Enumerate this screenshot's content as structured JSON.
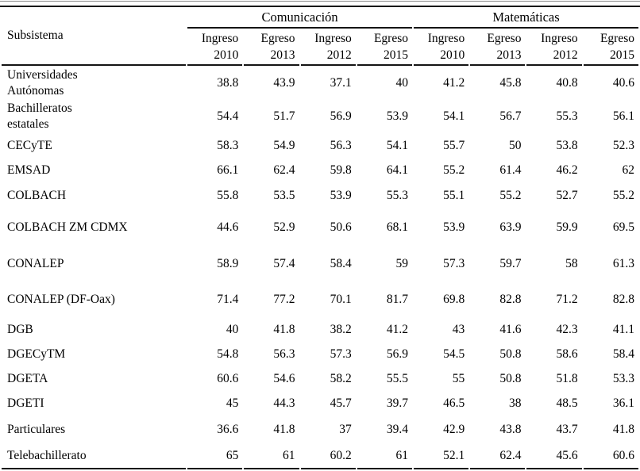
{
  "table": {
    "row_header_label": "Subsistema",
    "groups": [
      {
        "label": "Comunicación"
      },
      {
        "label": "Matemáticas"
      }
    ],
    "subheaders": [
      "Ingreso\n2010",
      "Egreso\n2013",
      "Ingreso\n2012",
      "Egreso\n2015",
      "Ingreso\n2010",
      "Egreso\n2013",
      "Ingreso\n2012",
      "Egreso\n2015"
    ],
    "rows": [
      {
        "label": "Universidades\nAutónomas",
        "values": [
          "38.8",
          "43.9",
          "37.1",
          "40",
          "41.2",
          "45.8",
          "40.8",
          "40.6"
        ]
      },
      {
        "label": "Bachilleratos\nestatales",
        "values": [
          "54.4",
          "51.7",
          "56.9",
          "53.9",
          "54.1",
          "56.7",
          "55.3",
          "56.1"
        ]
      },
      {
        "label": "CECyTE",
        "values": [
          "58.3",
          "54.9",
          "56.3",
          "54.1",
          "55.7",
          "50",
          "53.8",
          "52.3"
        ]
      },
      {
        "label": "EMSAD",
        "values": [
          "66.1",
          "62.4",
          "59.8",
          "64.1",
          "55.2",
          "61.4",
          "46.2",
          "62"
        ]
      },
      {
        "label": "COLBACH",
        "values": [
          "55.8",
          "53.5",
          "53.9",
          "55.3",
          "55.1",
          "55.2",
          "52.7",
          "55.2"
        ]
      },
      {
        "label": "COLBACH ZM CDMX",
        "values": [
          "44.6",
          "52.9",
          "50.6",
          "68.1",
          "53.9",
          "63.9",
          "59.9",
          "69.5"
        ]
      },
      {
        "label": "CONALEP",
        "values": [
          "58.9",
          "57.4",
          "58.4",
          "59",
          "57.3",
          "59.7",
          "58",
          "61.3"
        ]
      },
      {
        "label": "CONALEP (DF-Oax)",
        "values": [
          "71.4",
          "77.2",
          "70.1",
          "81.7",
          "69.8",
          "82.8",
          "71.2",
          "82.8"
        ]
      },
      {
        "label": "DGB",
        "values": [
          "40",
          "41.8",
          "38.2",
          "41.2",
          "43",
          "41.6",
          "42.3",
          "41.1"
        ]
      },
      {
        "label": "DGECyTM",
        "values": [
          "54.8",
          "56.3",
          "57.3",
          "56.9",
          "54.5",
          "50.8",
          "58.6",
          "58.4"
        ]
      },
      {
        "label": "DGETA",
        "values": [
          "60.6",
          "54.6",
          "58.2",
          "55.5",
          "55",
          "50.8",
          "51.8",
          "53.3"
        ]
      },
      {
        "label": "DGETI",
        "values": [
          "45",
          "44.3",
          "45.7",
          "39.7",
          "46.5",
          "38",
          "48.5",
          "36.1"
        ]
      },
      {
        "label": "Particulares",
        "values": [
          "36.6",
          "41.8",
          "37",
          "39.4",
          "42.9",
          "43.8",
          "43.7",
          "41.8"
        ]
      },
      {
        "label": "Telebachillerato",
        "values": [
          "65",
          "61",
          "60.2",
          "61",
          "52.1",
          "62.4",
          "45.6",
          "60.6"
        ]
      }
    ]
  }
}
